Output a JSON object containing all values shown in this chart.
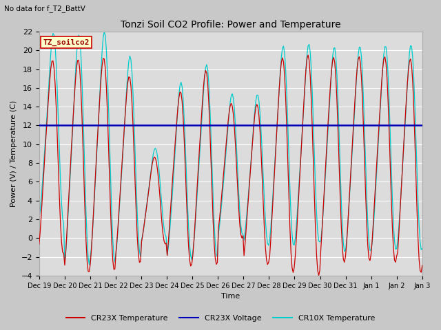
{
  "title": "Tonzi Soil CO2 Profile: Power and Temperature",
  "subtitle": "No data for f_T2_BattV",
  "ylabel": "Power (V) / Temperature (C)",
  "xlabel": "Time",
  "legend_label1": "CR23X Temperature",
  "legend_label2": "CR23X Voltage",
  "legend_label3": "CR10X Temperature",
  "legend_box_label": "TZ_soilco2",
  "ylim": [
    -4,
    22
  ],
  "yticks": [
    -4,
    -2,
    0,
    2,
    4,
    6,
    8,
    10,
    12,
    14,
    16,
    18,
    20,
    22
  ],
  "xtick_labels": [
    "Dec 19",
    "Dec 20",
    "Dec 21",
    "Dec 22",
    "Dec 23",
    "Dec 24",
    "Dec 25",
    "Dec 26",
    "Dec 27",
    "Dec 28",
    "Dec 29",
    "Dec 30",
    "Dec 31",
    "Jan 1",
    "Jan 2",
    "Jan 3"
  ],
  "color_cr23x_temp": "#cc0000",
  "color_cr23x_volt": "#0000bb",
  "color_cr10x_temp": "#00cccc",
  "voltage_value": 12.0,
  "fig_facecolor": "#c8c8c8",
  "plot_facecolor": "#dcdcdc",
  "grid_color": "#ffffff"
}
